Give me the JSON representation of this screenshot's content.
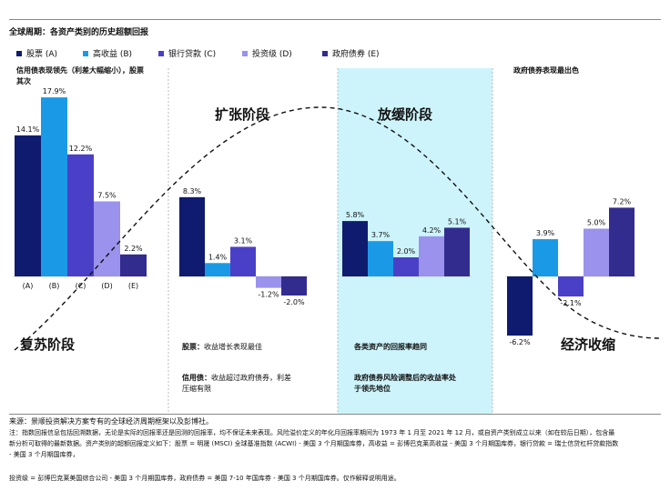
{
  "title": "全球周期：各资产类别的历史超额回报",
  "legend": [
    {
      "label": "股票 (A)",
      "color": "#0f1b6e"
    },
    {
      "label": "高收益 (B)",
      "color": "#1a9ae6"
    },
    {
      "label": "银行贷款 (C)",
      "color": "#4a40c8"
    },
    {
      "label": "投资级 (D)",
      "color": "#9a92ec"
    },
    {
      "label": "政府债券 (E)",
      "color": "#332c8f"
    }
  ],
  "chart_data": {
    "type": "bar",
    "title": "全球周期：各资产类别的历史超额回报",
    "series_names": [
      "股票 (A)",
      "高收益 (B)",
      "银行贷款 (C)",
      "投资级 (D)",
      "政府债券 (E)"
    ],
    "unit": "%",
    "panels": [
      {
        "phase": "复苏阶段",
        "values": [
          14.1,
          17.9,
          12.2,
          7.5,
          2.2
        ],
        "labels": [
          "14.1%",
          "17.9%",
          "12.2%",
          "7.5%",
          "2.2%"
        ],
        "categories": [
          "(A)",
          "(B)",
          "(C)",
          "(D)",
          "(E)"
        ]
      },
      {
        "phase": "扩张阶段",
        "values": [
          8.3,
          1.4,
          3.1,
          -1.2,
          -2.0
        ],
        "labels": [
          "8.3%",
          "1.4%",
          "3.1%",
          "-1.2%",
          "-2.0%"
        ]
      },
      {
        "phase": "放缓阶段",
        "values": [
          5.8,
          3.7,
          2.0,
          4.2,
          5.1
        ],
        "labels": [
          "5.8%",
          "3.7%",
          "2.0%",
          "4.2%",
          "5.1%"
        ]
      },
      {
        "phase": "经济收缩",
        "values": [
          -6.2,
          3.9,
          -2.1,
          5.0,
          7.2
        ],
        "labels": [
          "-6.2%",
          "3.9%",
          "-2.1%",
          "5.0%",
          "7.2%"
        ]
      }
    ]
  },
  "annotations": {
    "p1_heading": "信用债表现领先（利差大幅缩小），股票其次",
    "p1_heading_a": "信用债表现领先（利差大幅缩小），股票",
    "p1_heading_b": "其次",
    "p4_heading": "政府债券表现最出色",
    "p2_phase": "扩张阶段",
    "p3_phase": "放缓阶段",
    "p1_phase": "复苏阶段",
    "p4_phase": "经济收缩",
    "p2_note1_bold": "股票：",
    "p2_note1": "收益增长表现最佳",
    "p2_note2_bold": "信用债：",
    "p2_note2a": "收益超过政府债券，利差",
    "p2_note2b": "压缩有限",
    "p3_note1": "各类资产的回报率趋同",
    "p3_note2a": "政府债券风险调整后的收益率处",
    "p3_note2b": "于领先地位"
  },
  "footer": {
    "source": "来源：景顺投资解决方案专有的全球经济周期框架以及彭博社。",
    "note_line1": "注：指数回报信息包括回溯数据，无论是实际的回报率还是回测的回报率，均不保证未来表现。风险溢价定义的年化月回报率期间为 1973 年 1 月至 2021 年 12 月，或自资产类别成立以来（如在较后日期），包含最",
    "note_line2": "新分析可取得的最新数据。资产类别的超额回报定义如下：股票 = 明晟 (MSCI) 全球基准指数 (ACWI) - 美国 3 个月期国库券，高收益 = 彭博巴克莱高收益 - 美国 3 个月期国库券，银行贷款 = 瑞士信贷杠杆贷款指数",
    "note_line3": "- 美国 3 个月期国库券，",
    "note_line4": "投资级 = 彭博巴克莱美国综合公司 - 美国 3 个月期国库券，政府债券 = 美国 7-10 年国库券 - 美国 3 个月期国库券。仅作解释说明用途。"
  }
}
